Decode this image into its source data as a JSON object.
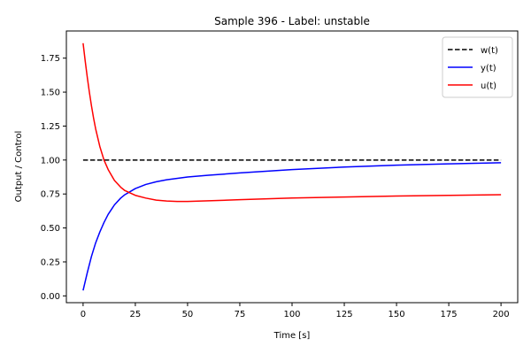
{
  "chart_data": {
    "type": "line",
    "title": "Sample 396 - Label: unstable",
    "xlabel": "Time [s]",
    "ylabel": "Output / Control",
    "xlim": [
      -8,
      208
    ],
    "ylim": [
      -0.05,
      1.95
    ],
    "xticks": [
      0,
      25,
      50,
      75,
      100,
      125,
      150,
      175,
      200
    ],
    "yticks": [
      0.0,
      0.25,
      0.5,
      0.75,
      1.0,
      1.25,
      1.5,
      1.75
    ],
    "ytick_labels": [
      "0.00",
      "0.25",
      "0.50",
      "0.75",
      "1.00",
      "1.25",
      "1.50",
      "1.75"
    ],
    "xtick_labels": [
      "0",
      "25",
      "50",
      "75",
      "100",
      "125",
      "150",
      "175",
      "200"
    ],
    "grid": false,
    "legend_position": "top-right",
    "series": [
      {
        "name": "w(t)",
        "color": "#000000",
        "dash": "dashed",
        "x": [
          0,
          200
        ],
        "y": [
          1.0,
          1.0
        ]
      },
      {
        "name": "y(t)",
        "color": "#0000ff",
        "dash": "solid",
        "x": [
          0,
          2,
          4,
          6,
          8,
          10,
          12,
          15,
          18,
          20,
          25,
          30,
          35,
          40,
          50,
          60,
          75,
          100,
          125,
          150,
          175,
          200
        ],
        "y": [
          0.04,
          0.17,
          0.29,
          0.39,
          0.47,
          0.54,
          0.6,
          0.67,
          0.72,
          0.745,
          0.79,
          0.82,
          0.84,
          0.855,
          0.875,
          0.888,
          0.905,
          0.93,
          0.948,
          0.962,
          0.972,
          0.98
        ]
      },
      {
        "name": "u(t)",
        "color": "#ff0000",
        "dash": "solid",
        "x": [
          0,
          1,
          2,
          3,
          4,
          5,
          6,
          8,
          10,
          12,
          15,
          18,
          20,
          25,
          30,
          35,
          40,
          45,
          50,
          60,
          75,
          100,
          125,
          150,
          175,
          200
        ],
        "y": [
          1.86,
          1.73,
          1.61,
          1.5,
          1.4,
          1.31,
          1.23,
          1.1,
          1.0,
          0.93,
          0.85,
          0.8,
          0.775,
          0.74,
          0.72,
          0.705,
          0.698,
          0.695,
          0.695,
          0.7,
          0.708,
          0.72,
          0.728,
          0.735,
          0.74,
          0.745
        ]
      }
    ]
  }
}
